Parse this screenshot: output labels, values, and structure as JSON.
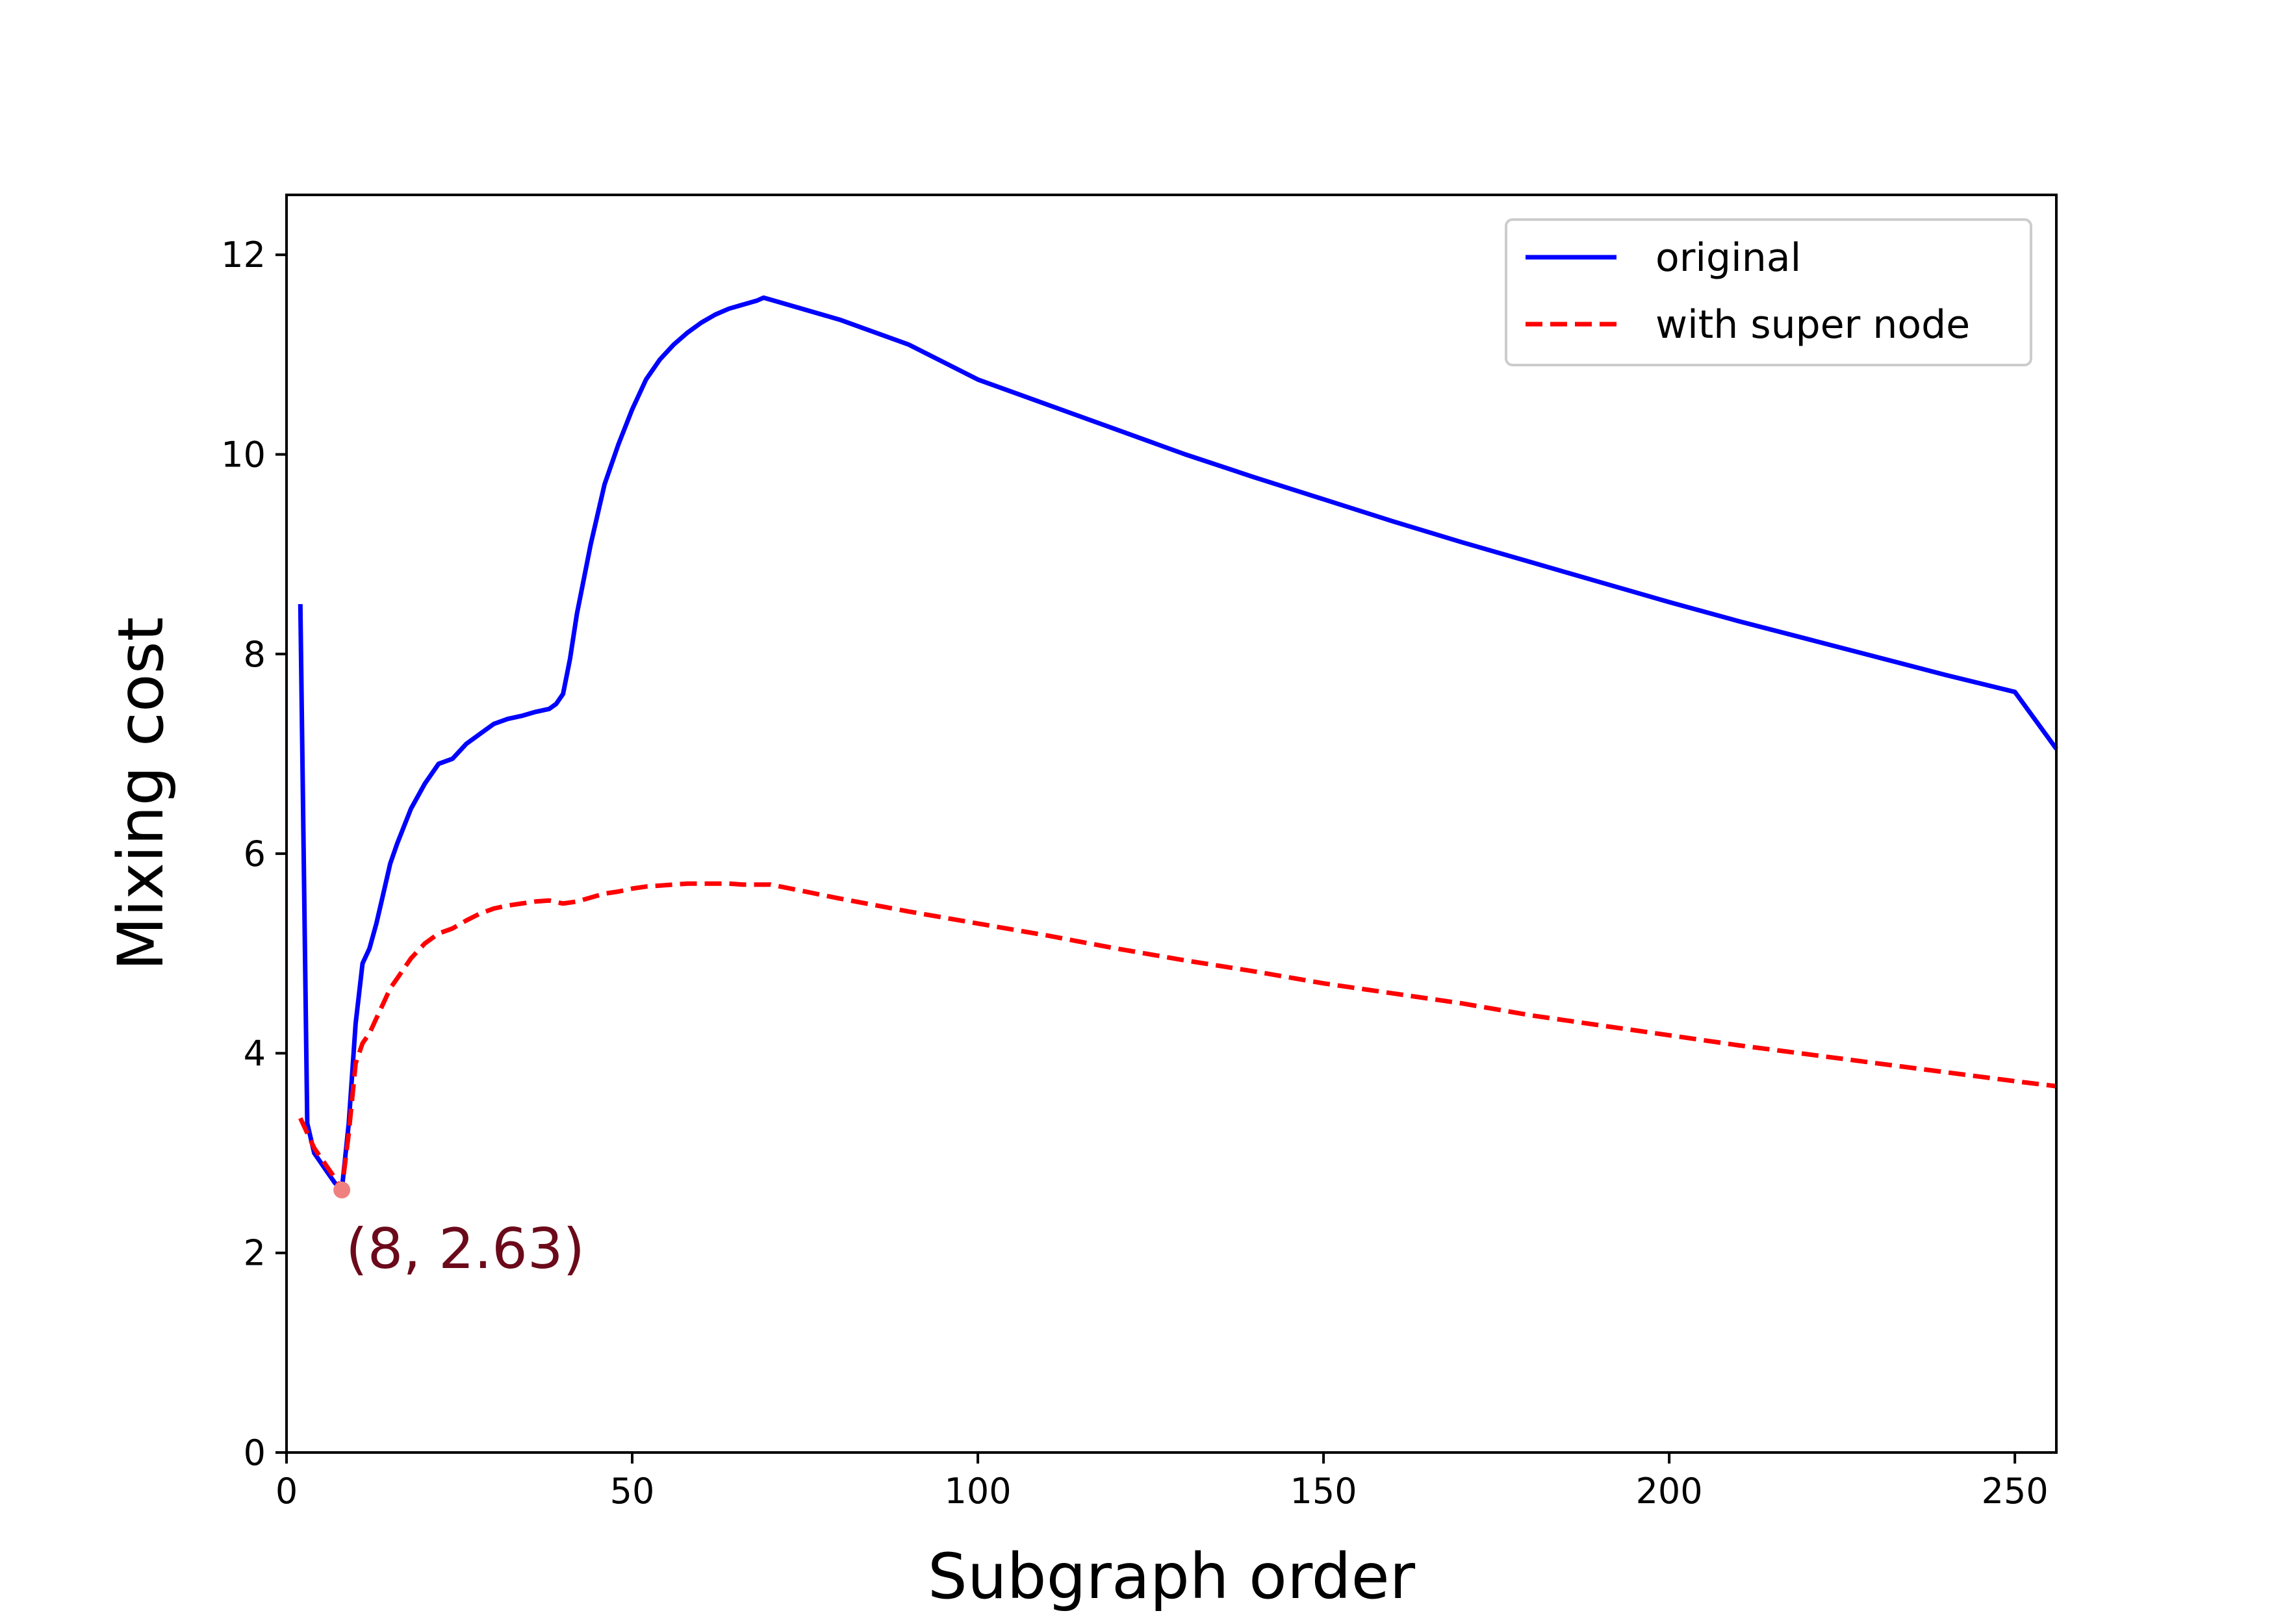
{
  "chart_data": {
    "type": "line",
    "xlabel": "Subgraph order",
    "ylabel": "Mixing cost",
    "xlim": [
      0,
      256
    ],
    "ylim": [
      0,
      12.6
    ],
    "xticks": [
      0,
      50,
      100,
      150,
      200,
      250
    ],
    "yticks": [
      0,
      2,
      4,
      6,
      8,
      10,
      12
    ],
    "grid": false,
    "legend_position": "top-right",
    "series": [
      {
        "name": "original",
        "color": "#0000ff",
        "style": "solid",
        "x": [
          2,
          3,
          4,
          5,
          6,
          7,
          8,
          9,
          10,
          11,
          12,
          13,
          14,
          15,
          16,
          18,
          20,
          22,
          24,
          26,
          28,
          30,
          32,
          34,
          36,
          38,
          39,
          40,
          41,
          42,
          44,
          46,
          48,
          50,
          52,
          54,
          56,
          58,
          60,
          62,
          64,
          66,
          68,
          69,
          70,
          80,
          90,
          100,
          110,
          120,
          130,
          140,
          150,
          160,
          170,
          180,
          190,
          200,
          210,
          220,
          230,
          240,
          250,
          256
        ],
        "y": [
          8.5,
          3.3,
          3.0,
          2.9,
          2.8,
          2.7,
          2.63,
          3.3,
          4.3,
          4.9,
          5.05,
          5.3,
          5.6,
          5.9,
          6.1,
          6.45,
          6.7,
          6.9,
          6.95,
          7.1,
          7.2,
          7.3,
          7.35,
          7.38,
          7.42,
          7.45,
          7.5,
          7.6,
          7.95,
          8.4,
          9.1,
          9.7,
          10.1,
          10.45,
          10.75,
          10.95,
          11.1,
          11.22,
          11.32,
          11.4,
          11.46,
          11.5,
          11.54,
          11.57,
          11.55,
          11.35,
          11.1,
          10.75,
          10.5,
          10.25,
          10.0,
          9.77,
          9.55,
          9.33,
          9.12,
          8.92,
          8.72,
          8.52,
          8.33,
          8.15,
          7.97,
          7.79,
          7.62,
          7.05
        ]
      },
      {
        "name": "with super node",
        "color": "#ff0000",
        "style": "dashed",
        "x": [
          2,
          3,
          4,
          5,
          6,
          7,
          8,
          9,
          10,
          11,
          12,
          13,
          14,
          15,
          16,
          18,
          20,
          22,
          24,
          26,
          28,
          30,
          32,
          34,
          36,
          38,
          40,
          42,
          44,
          46,
          48,
          50,
          52,
          54,
          56,
          58,
          60,
          62,
          64,
          66,
          68,
          70,
          80,
          90,
          100,
          110,
          120,
          130,
          140,
          150,
          160,
          170,
          180,
          190,
          200,
          210,
          220,
          230,
          240,
          250,
          256
        ],
        "y": [
          3.35,
          3.2,
          3.05,
          2.95,
          2.85,
          2.75,
          2.63,
          3.2,
          3.9,
          4.1,
          4.2,
          4.35,
          4.5,
          4.65,
          4.75,
          4.95,
          5.1,
          5.2,
          5.25,
          5.33,
          5.4,
          5.45,
          5.48,
          5.5,
          5.52,
          5.53,
          5.5,
          5.52,
          5.56,
          5.6,
          5.62,
          5.65,
          5.67,
          5.68,
          5.69,
          5.7,
          5.7,
          5.7,
          5.7,
          5.69,
          5.69,
          5.69,
          5.55,
          5.42,
          5.3,
          5.18,
          5.05,
          4.93,
          4.82,
          4.7,
          4.6,
          4.5,
          4.38,
          4.28,
          4.18,
          4.08,
          3.99,
          3.9,
          3.81,
          3.72,
          3.67
        ]
      }
    ],
    "annotations": [
      {
        "x": 8,
        "y": 2.63,
        "text": "(8, 2.63)",
        "marker_color": "#f08080",
        "text_color": "#6b0a1a"
      }
    ]
  }
}
